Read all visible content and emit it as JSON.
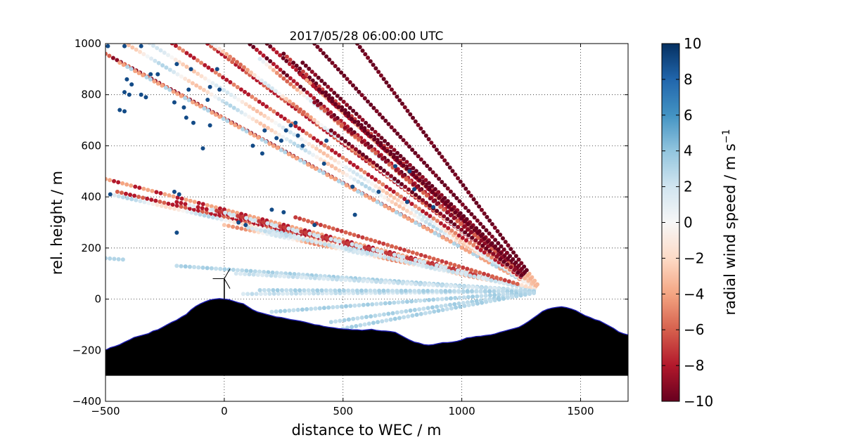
{
  "chart_data": {
    "type": "scatter",
    "title": "2017/05/28 06:00:00 UTC",
    "xlabel": "distance to WEC / m",
    "ylabel": "rel. height / m",
    "xlim": [
      -500,
      1700
    ],
    "ylim": [
      -400,
      1000
    ],
    "xticks": [
      -500,
      0,
      500,
      1000,
      1500
    ],
    "yticks": [
      -400,
      -200,
      0,
      200,
      400,
      600,
      800,
      1000
    ],
    "x_tick_labels": [
      "−500",
      "0",
      "500",
      "1000",
      "1500"
    ],
    "y_tick_labels": [
      "−400",
      "−200",
      "0",
      "200",
      "400",
      "600",
      "800",
      "1000"
    ],
    "grid": true,
    "colorbar": {
      "label": "radial wind speed / m s",
      "label_superscript": "−1",
      "range": [
        -10,
        10
      ],
      "ticks": [
        -10,
        -8,
        -6,
        -4,
        -2,
        0,
        2,
        4,
        6,
        8,
        10
      ],
      "tick_labels": [
        "−10",
        "−8",
        "−6",
        "−4",
        "−2",
        "0",
        "2",
        "4",
        "6",
        "8",
        "10"
      ],
      "colormap": "RdBu",
      "colors": [
        "#67001f",
        "#b2182b",
        "#d6604d",
        "#f4a582",
        "#fddbc7",
        "#f7f7f7",
        "#d1e5f0",
        "#92c5de",
        "#4393c3",
        "#2166ac",
        "#053061"
      ]
    },
    "lidar_origin": [
      1340,
      30
    ],
    "scan_beams": [
      {
        "end": [
          -500,
          960
        ],
        "value": -9,
        "alt": -6,
        "mode": "alt"
      },
      {
        "end": [
          -440,
          925
        ],
        "value": -4,
        "alt": 3,
        "mode": "alt"
      },
      {
        "end": [
          -450,
          1020
        ],
        "value": -3,
        "alt": 3,
        "mode": "mix"
      },
      {
        "end": [
          -330,
          1010
        ],
        "value": 2,
        "alt": -3,
        "mode": "mix"
      },
      {
        "end": [
          -250,
          1020
        ],
        "value": -8,
        "alt": -5,
        "mode": "alt"
      },
      {
        "end": [
          -100,
          1020
        ],
        "value": -8,
        "alt": -6,
        "mode": "alt"
      },
      {
        "end": [
          -50,
          1000
        ],
        "value": -6,
        "alt": 2,
        "mode": "mix"
      },
      {
        "end": [
          80,
          1020
        ],
        "value": -8,
        "alt": -10,
        "mode": "alt"
      },
      {
        "end": [
          150,
          940
        ],
        "value": -6,
        "alt": 2,
        "mode": "mix"
      },
      {
        "end": [
          180,
          1000
        ],
        "value": -8,
        "alt": -10,
        "mode": "alt"
      },
      {
        "end": [
          250,
          960
        ],
        "value": -10,
        "alt": -7,
        "mode": "alt"
      },
      {
        "end": [
          330,
          925
        ],
        "value": -10,
        "alt": -9,
        "mode": "alt"
      },
      {
        "end": [
          320,
          880
        ],
        "value": -8,
        "alt": -4,
        "mode": "alt"
      },
      {
        "end": [
          400,
          820
        ],
        "value": -10,
        "alt": -10,
        "mode": "alt"
      },
      {
        "end": [
          380,
          770
        ],
        "value": -9,
        "alt": -6,
        "mode": "alt"
      },
      {
        "end": [
          450,
          660
        ],
        "value": -10,
        "alt": -9,
        "mode": "alt"
      },
      {
        "end": [
          560,
          1000
        ],
        "value": -10,
        "alt": -10,
        "mode": "solid"
      },
      {
        "end": [
          380,
          1000
        ],
        "value": -10,
        "alt": -10,
        "mode": "solid"
      },
      {
        "end": [
          -500,
          470
        ],
        "value": -4,
        "alt": -8,
        "mode": "alt"
      },
      {
        "end": [
          -450,
          420
        ],
        "value": -8,
        "alt": -6,
        "mode": "alt"
      },
      {
        "end": [
          -480,
          410
        ],
        "value": 3,
        "alt": -2,
        "mode": "mix"
      },
      {
        "end": [
          -200,
          380
        ],
        "value": -8,
        "alt": 1,
        "mode": "alt"
      },
      {
        "end": [
          -50,
          350
        ],
        "value": 2,
        "alt": -7,
        "mode": "alt"
      },
      {
        "end": [
          0,
          290
        ],
        "value": 2,
        "alt": -5,
        "mode": "mix"
      },
      {
        "end": [
          100,
          280
        ],
        "value": 2,
        "alt": 2,
        "mode": "solid"
      },
      {
        "end": [
          300,
          320
        ],
        "value": -6,
        "alt": -7,
        "mode": "alt"
      },
      {
        "end": [
          -500,
          160
        ],
        "value": 3,
        "alt": 3,
        "mode": "short"
      },
      {
        "end": [
          -200,
          130
        ],
        "value": 3,
        "alt": 2,
        "mode": "solid"
      },
      {
        "end": [
          50,
          100
        ],
        "value": 2,
        "alt": 1,
        "mode": "solid"
      },
      {
        "end": [
          80,
          20
        ],
        "value": 2,
        "alt": 1,
        "mode": "solid"
      },
      {
        "end": [
          150,
          35
        ],
        "value": 3,
        "alt": 2,
        "mode": "solid"
      },
      {
        "end": [
          200,
          -50
        ],
        "value": 3,
        "alt": 2,
        "mode": "solid"
      },
      {
        "end": [
          450,
          -90
        ],
        "value": 3,
        "alt": 3,
        "mode": "solid"
      },
      {
        "end": [
          500,
          -115
        ],
        "value": 3,
        "alt": 3,
        "mode": "solid"
      }
    ],
    "outliers": [
      [
        -490,
        990,
        9
      ],
      [
        -420,
        990,
        9
      ],
      [
        -350,
        990,
        9
      ],
      [
        -410,
        860,
        9
      ],
      [
        -390,
        840,
        9
      ],
      [
        -420,
        810,
        9
      ],
      [
        -350,
        800,
        9
      ],
      [
        -310,
        880,
        9
      ],
      [
        -440,
        740,
        9
      ],
      [
        -420,
        735,
        9
      ],
      [
        -210,
        770,
        9
      ],
      [
        -170,
        750,
        9
      ],
      [
        -160,
        710,
        9
      ],
      [
        -130,
        690,
        9
      ],
      [
        -60,
        680,
        9
      ],
      [
        -90,
        590,
        9
      ],
      [
        -70,
        780,
        9
      ],
      [
        -60,
        830,
        9
      ],
      [
        -150,
        820,
        9
      ],
      [
        -140,
        900,
        9
      ],
      [
        -30,
        900,
        9
      ],
      [
        -20,
        820,
        9
      ],
      [
        -200,
        920,
        9
      ],
      [
        -280,
        880,
        9
      ],
      [
        160,
        570,
        9
      ],
      [
        170,
        660,
        9
      ],
      [
        220,
        630,
        9
      ],
      [
        240,
        620,
        9
      ],
      [
        260,
        660,
        9
      ],
      [
        280,
        680,
        9
      ],
      [
        300,
        690,
        9
      ],
      [
        310,
        640,
        9
      ],
      [
        330,
        600,
        9
      ],
      [
        430,
        620,
        9
      ],
      [
        420,
        530,
        9
      ],
      [
        540,
        440,
        9
      ],
      [
        550,
        330,
        9
      ],
      [
        650,
        420,
        9
      ],
      [
        720,
        520,
        9
      ],
      [
        770,
        380,
        9
      ],
      [
        780,
        500,
        9
      ],
      [
        800,
        430,
        9
      ],
      [
        880,
        360,
        9
      ],
      [
        -480,
        410,
        9
      ],
      [
        -210,
        420,
        9
      ],
      [
        -190,
        410,
        9
      ],
      [
        -200,
        260,
        9
      ],
      [
        60,
        300,
        9
      ],
      [
        90,
        290,
        9
      ],
      [
        200,
        350,
        9
      ],
      [
        250,
        340,
        9
      ],
      [
        380,
        290,
        9
      ],
      [
        -400,
        800,
        9
      ],
      [
        -330,
        790,
        9
      ],
      [
        120,
        600,
        9
      ]
    ],
    "terrain_profile": [
      [
        -500,
        -200
      ],
      [
        -480,
        -190
      ],
      [
        -460,
        -185
      ],
      [
        -440,
        -178
      ],
      [
        -420,
        -168
      ],
      [
        -400,
        -160
      ],
      [
        -380,
        -150
      ],
      [
        -360,
        -145
      ],
      [
        -340,
        -140
      ],
      [
        -320,
        -135
      ],
      [
        -300,
        -125
      ],
      [
        -280,
        -120
      ],
      [
        -260,
        -110
      ],
      [
        -240,
        -100
      ],
      [
        -220,
        -90
      ],
      [
        -200,
        -82
      ],
      [
        -180,
        -70
      ],
      [
        -160,
        -60
      ],
      [
        -140,
        -42
      ],
      [
        -120,
        -28
      ],
      [
        -100,
        -18
      ],
      [
        -80,
        -10
      ],
      [
        -60,
        -3
      ],
      [
        -40,
        0
      ],
      [
        -20,
        2
      ],
      [
        0,
        0
      ],
      [
        20,
        -2
      ],
      [
        40,
        -8
      ],
      [
        60,
        -14
      ],
      [
        80,
        -18
      ],
      [
        100,
        -30
      ],
      [
        120,
        -42
      ],
      [
        140,
        -50
      ],
      [
        160,
        -55
      ],
      [
        180,
        -60
      ],
      [
        200,
        -65
      ],
      [
        220,
        -70
      ],
      [
        240,
        -72
      ],
      [
        260,
        -76
      ],
      [
        280,
        -80
      ],
      [
        300,
        -83
      ],
      [
        320,
        -86
      ],
      [
        340,
        -90
      ],
      [
        360,
        -95
      ],
      [
        380,
        -100
      ],
      [
        400,
        -102
      ],
      [
        420,
        -107
      ],
      [
        440,
        -110
      ],
      [
        460,
        -112
      ],
      [
        480,
        -115
      ],
      [
        500,
        -117
      ],
      [
        520,
        -118
      ],
      [
        540,
        -120
      ],
      [
        560,
        -120
      ],
      [
        580,
        -122
      ],
      [
        600,
        -120
      ],
      [
        620,
        -118
      ],
      [
        640,
        -122
      ],
      [
        660,
        -124
      ],
      [
        680,
        -125
      ],
      [
        700,
        -127
      ],
      [
        720,
        -130
      ],
      [
        740,
        -140
      ],
      [
        760,
        -150
      ],
      [
        780,
        -160
      ],
      [
        800,
        -168
      ],
      [
        820,
        -172
      ],
      [
        840,
        -178
      ],
      [
        860,
        -180
      ],
      [
        880,
        -178
      ],
      [
        900,
        -174
      ],
      [
        920,
        -170
      ],
      [
        940,
        -170
      ],
      [
        960,
        -168
      ],
      [
        980,
        -165
      ],
      [
        1000,
        -160
      ],
      [
        1020,
        -152
      ],
      [
        1040,
        -150
      ],
      [
        1060,
        -146
      ],
      [
        1080,
        -145
      ],
      [
        1100,
        -142
      ],
      [
        1120,
        -140
      ],
      [
        1140,
        -136
      ],
      [
        1160,
        -130
      ],
      [
        1180,
        -125
      ],
      [
        1200,
        -120
      ],
      [
        1220,
        -115
      ],
      [
        1240,
        -110
      ],
      [
        1260,
        -100
      ],
      [
        1280,
        -88
      ],
      [
        1300,
        -75
      ],
      [
        1320,
        -62
      ],
      [
        1340,
        -48
      ],
      [
        1360,
        -40
      ],
      [
        1380,
        -35
      ],
      [
        1400,
        -32
      ],
      [
        1420,
        -30
      ],
      [
        1440,
        -33
      ],
      [
        1460,
        -38
      ],
      [
        1480,
        -45
      ],
      [
        1500,
        -55
      ],
      [
        1520,
        -65
      ],
      [
        1540,
        -72
      ],
      [
        1560,
        -80
      ],
      [
        1580,
        -85
      ],
      [
        1600,
        -95
      ],
      [
        1620,
        -105
      ],
      [
        1640,
        -115
      ],
      [
        1660,
        -128
      ],
      [
        1680,
        -135
      ],
      [
        1700,
        -140
      ]
    ],
    "terrain_base": -300,
    "turbine": {
      "x": 0,
      "hub_height": 80,
      "rotor_radius": 45
    }
  }
}
